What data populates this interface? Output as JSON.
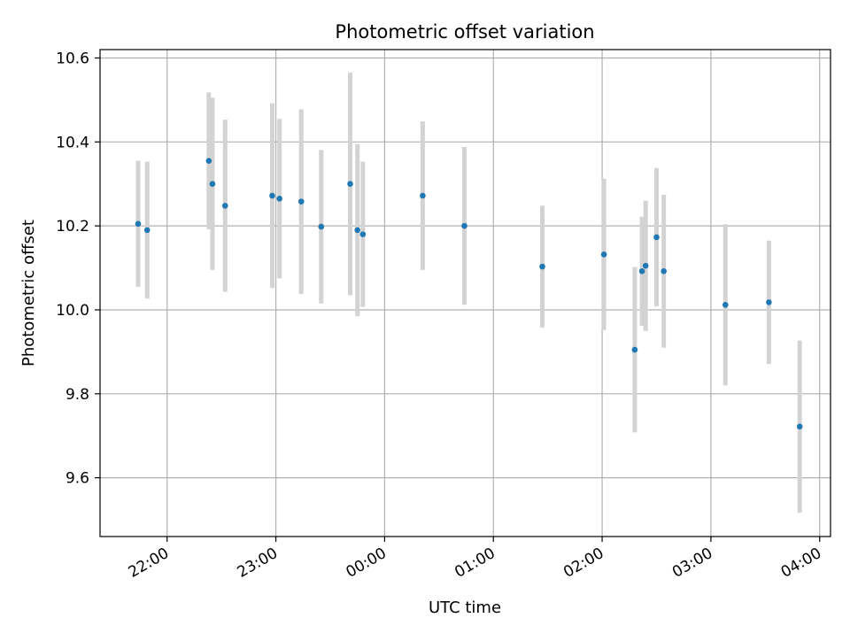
{
  "chart_data": {
    "type": "scatter",
    "title": "Photometric offset variation",
    "xlabel": "UTC time",
    "ylabel": "Photometric offset",
    "x_unit": "UTC time (hh:mm, starting on the evening of the observing night)",
    "xlim": [
      "21:23",
      "04:06"
    ],
    "ylim": [
      9.46,
      10.62
    ],
    "x_ticks": [
      "22:00",
      "23:00",
      "00:00",
      "01:00",
      "02:00",
      "03:00",
      "04:00"
    ],
    "y_ticks": [
      9.6,
      9.8,
      10.0,
      10.2,
      10.4,
      10.6
    ],
    "grid": true,
    "marker_color": "#1f77b4",
    "errorbar_color": "#d3d3d3",
    "points": [
      {
        "x": "21:44",
        "y": 10.205,
        "err": 0.15
      },
      {
        "x": "21:49",
        "y": 10.19,
        "err": 0.163
      },
      {
        "x": "22:23",
        "y": 10.355,
        "err": 0.163
      },
      {
        "x": "22:25",
        "y": 10.3,
        "err": 0.205
      },
      {
        "x": "22:32",
        "y": 10.248,
        "err": 0.205
      },
      {
        "x": "22:58",
        "y": 10.272,
        "err": 0.22
      },
      {
        "x": "23:02",
        "y": 10.265,
        "err": 0.19
      },
      {
        "x": "23:14",
        "y": 10.258,
        "err": 0.22
      },
      {
        "x": "23:25",
        "y": 10.198,
        "err": 0.183
      },
      {
        "x": "23:41",
        "y": 10.3,
        "err": 0.265
      },
      {
        "x": "23:45",
        "y": 10.19,
        "err": 0.205
      },
      {
        "x": "23:48",
        "y": 10.18,
        "err": 0.173
      },
      {
        "x": "00:21",
        "y": 10.272,
        "err": 0.177
      },
      {
        "x": "00:44",
        "y": 10.2,
        "err": 0.188
      },
      {
        "x": "01:27",
        "y": 10.103,
        "err": 0.145
      },
      {
        "x": "02:01",
        "y": 10.132,
        "err": 0.18
      },
      {
        "x": "02:18",
        "y": 9.905,
        "err": 0.197
      },
      {
        "x": "02:22",
        "y": 10.092,
        "err": 0.13
      },
      {
        "x": "02:24",
        "y": 10.105,
        "err": 0.155
      },
      {
        "x": "02:30",
        "y": 10.173,
        "err": 0.165
      },
      {
        "x": "02:34",
        "y": 10.092,
        "err": 0.182
      },
      {
        "x": "03:08",
        "y": 10.012,
        "err": 0.192
      },
      {
        "x": "03:32",
        "y": 10.018,
        "err": 0.147
      },
      {
        "x": "03:49",
        "y": 9.722,
        "err": 0.205
      }
    ]
  }
}
